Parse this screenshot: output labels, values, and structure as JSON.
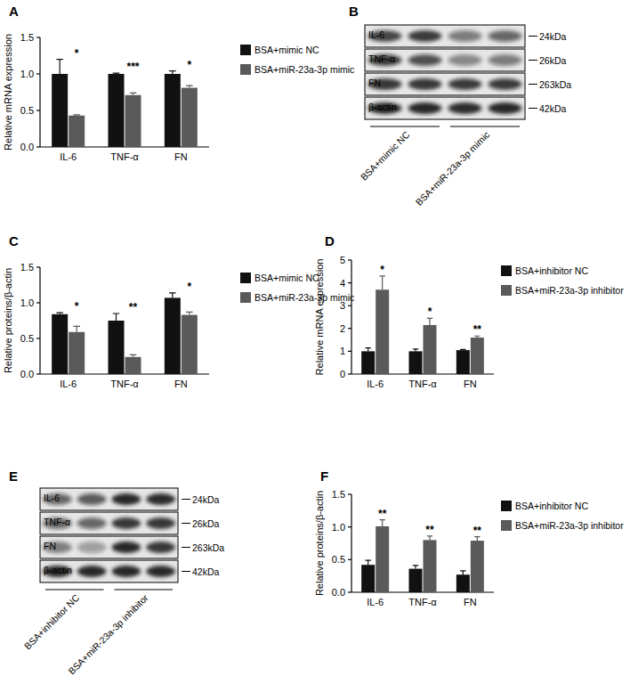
{
  "chart_data": [
    {
      "type": "bar",
      "title": "A",
      "y_label": "Relative mRNA expression",
      "categories": [
        "IL-6",
        "TNF-α",
        "FN"
      ],
      "series": [
        {
          "name": "BSA+mimic NC",
          "color": "#111111",
          "values": [
            1.0,
            1.0,
            1.0
          ],
          "errors": [
            0.2,
            0.01,
            0.04
          ]
        },
        {
          "name": "BSA+miR-23a-3p mimic",
          "color": "#5a5a5a",
          "values": [
            0.43,
            0.71,
            0.81
          ],
          "errors": [
            0.01,
            0.03,
            0.03
          ]
        }
      ],
      "significance": [
        "*",
        "***",
        "*"
      ],
      "ylim": [
        0,
        1.5
      ],
      "yticks": [
        {
          "value": 0,
          "label": "0.0"
        },
        0.5,
        {
          "value": 1,
          "label": "1.0"
        },
        1.5
      ],
      "grid": false,
      "legend": "right"
    },
    {
      "type": "bar",
      "title": "C",
      "y_label": "Relative proteins/β-actin",
      "categories": [
        "IL-6",
        "TNF-α",
        "FN"
      ],
      "series": [
        {
          "name": "BSA+mimic NC",
          "color": "#111111",
          "values": [
            0.84,
            0.75,
            1.07
          ],
          "errors": [
            0.02,
            0.1,
            0.07
          ]
        },
        {
          "name": "BSA+miR-23a-3p mimic",
          "color": "#5a5a5a",
          "values": [
            0.59,
            0.24,
            0.83
          ],
          "errors": [
            0.08,
            0.03,
            0.04
          ]
        }
      ],
      "significance": [
        "*",
        "**",
        "*"
      ],
      "ylim": [
        0,
        1.5
      ],
      "yticks": [
        {
          "value": 0,
          "label": "0.0"
        },
        0.5,
        {
          "value": 1,
          "label": "1.0"
        },
        1.5
      ],
      "grid": false,
      "legend": "right"
    },
    {
      "type": "bar",
      "title": "D",
      "y_label": "Relative mRNA expression",
      "categories": [
        "IL-6",
        "TNF-α",
        "FN"
      ],
      "series": [
        {
          "name": "BSA+inhibitor NC",
          "color": "#111111",
          "values": [
            1.0,
            1.0,
            1.05
          ],
          "errors": [
            0.15,
            0.1,
            0.03
          ]
        },
        {
          "name": "BSA+miR-23a-3p inhibitor",
          "color": "#5a5a5a",
          "values": [
            3.7,
            2.15,
            1.6
          ],
          "errors": [
            0.6,
            0.3,
            0.07
          ]
        }
      ],
      "significance": [
        "*",
        "*",
        "**"
      ],
      "ylim": [
        0,
        5
      ],
      "yticks": [
        0,
        1,
        2,
        3,
        4,
        5
      ],
      "grid": false,
      "legend": "right"
    },
    {
      "type": "bar",
      "title": "F",
      "y_label": "Relative proteins/β-actin",
      "categories": [
        "IL-6",
        "TNF-α",
        "FN"
      ],
      "series": [
        {
          "name": "BSA+inhibitor NC",
          "color": "#111111",
          "values": [
            0.42,
            0.36,
            0.27
          ],
          "errors": [
            0.07,
            0.05,
            0.06
          ]
        },
        {
          "name": "BSA+miR-23a-3p inhibitor",
          "color": "#5a5a5a",
          "values": [
            1.01,
            0.8,
            0.79
          ],
          "errors": [
            0.1,
            0.06,
            0.06
          ]
        }
      ],
      "significance": [
        "**",
        "**",
        "**"
      ],
      "ylim": [
        0,
        1.5
      ],
      "yticks": [
        {
          "value": 0,
          "label": "0.0"
        },
        0.5,
        {
          "value": 1,
          "label": "1.0"
        },
        1.5
      ],
      "grid": false,
      "legend": "right"
    }
  ],
  "blots": [
    {
      "title": "B",
      "rows": [
        {
          "label": "IL-6",
          "size": "24kDa"
        },
        {
          "label": "TNF-α",
          "size": "26kDa"
        },
        {
          "label": "FN",
          "size": "263kDa"
        },
        {
          "label": "β-actin",
          "size": "42kDa"
        }
      ],
      "lanes": [
        "BSA+mimic NC",
        "BSA+miR-23a-3p mimic"
      ]
    },
    {
      "title": "E",
      "rows": [
        {
          "label": "IL-6",
          "size": "24kDa"
        },
        {
          "label": "TNF-α",
          "size": "26kDa"
        },
        {
          "label": "FN",
          "size": "263kDa"
        },
        {
          "label": "β-actin",
          "size": "42kDa"
        }
      ],
      "lanes": [
        "BSA+inhibitor NC",
        "BSA+miR-23a-3p inhibitor"
      ]
    }
  ]
}
